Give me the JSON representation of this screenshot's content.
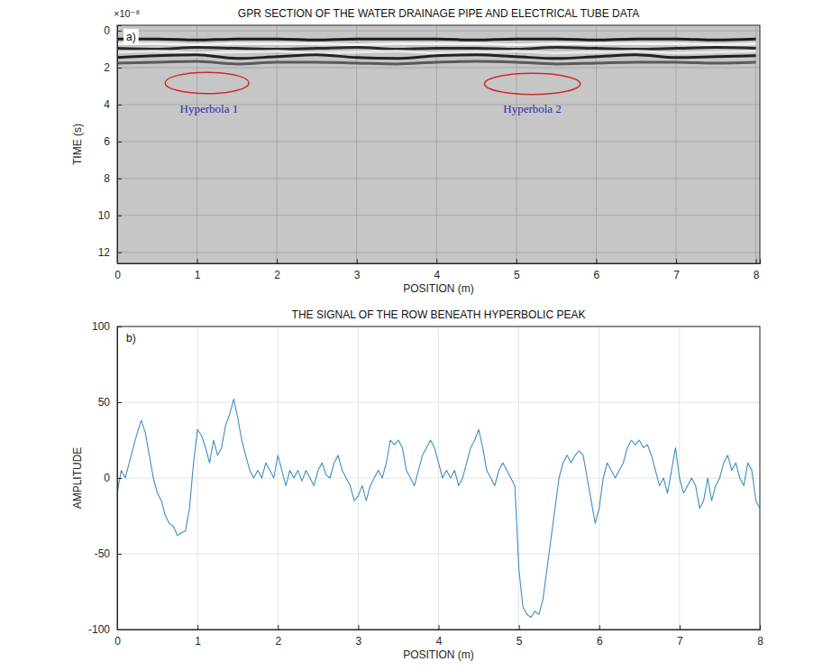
{
  "chart_data": [
    {
      "type": "image",
      "title": "GPR SECTION OF THE WATER DRAINAGE PIPE AND ELECTRICAL TUBE DATA",
      "panel_label": "a)",
      "y_scale_label": "×10⁻⁸",
      "xlabel": "POSITION (m)",
      "ylabel": "TIME (s)",
      "xlim": [
        0,
        8.05
      ],
      "ylim": [
        -0.3,
        12.6
      ],
      "xticks": [
        0,
        1,
        2,
        3,
        4,
        5,
        6,
        7,
        8
      ],
      "yticks": [
        0,
        2,
        4,
        6,
        8,
        10,
        12
      ],
      "grid": true,
      "x": [
        0,
        0.5,
        1,
        1.5,
        2,
        2.5,
        3,
        3.5,
        4,
        4.5,
        5,
        5.5,
        6,
        6.5,
        7,
        7.5,
        8
      ],
      "series": [
        {
          "color": "#1c1c1c",
          "values": [
            0.45,
            0.45,
            0.5,
            0.45,
            0.45,
            0.5,
            0.45,
            0.45,
            0.45,
            0.5,
            0.45,
            0.45,
            0.5,
            0.45,
            0.45,
            0.5,
            0.45
          ]
        },
        {
          "color": "#f2f2f2",
          "values": [
            0.7,
            0.7,
            0.75,
            0.7,
            0.7,
            0.7,
            0.75,
            0.7,
            0.7,
            0.7,
            0.75,
            0.7,
            0.7,
            0.7,
            0.7,
            0.75,
            0.7
          ]
        },
        {
          "color": "#2a2a2a",
          "values": [
            0.95,
            1.0,
            0.9,
            0.95,
            1.0,
            0.95,
            0.9,
            1.0,
            0.95,
            0.95,
            1.0,
            0.9,
            0.95,
            1.0,
            0.95,
            0.9,
            0.95
          ]
        },
        {
          "color": "#e8e8e8",
          "values": [
            1.15,
            1.1,
            1.2,
            1.15,
            1.1,
            1.2,
            1.15,
            1.1,
            1.2,
            1.15,
            1.1,
            1.2,
            1.15,
            1.1,
            1.2,
            1.15,
            1.1
          ]
        },
        {
          "color": "#222222",
          "values": [
            1.45,
            1.35,
            1.3,
            1.5,
            1.4,
            1.3,
            1.45,
            1.5,
            1.35,
            1.3,
            1.4,
            1.5,
            1.4,
            1.3,
            1.45,
            1.4,
            1.35
          ]
        },
        {
          "color": "#5a5a5a",
          "values": [
            1.75,
            1.7,
            1.65,
            1.8,
            1.7,
            1.7,
            1.75,
            1.8,
            1.7,
            1.65,
            1.7,
            1.8,
            1.75,
            1.7,
            1.7,
            1.75,
            1.7
          ]
        }
      ],
      "regions": [
        {
          "x": [
            0.6,
            1.65
          ],
          "y": [
            2.25,
            3.4
          ],
          "color": "#cc2b2b"
        },
        {
          "x": [
            4.6,
            5.8
          ],
          "y": [
            2.3,
            3.45
          ],
          "color": "#cc2b2b"
        }
      ],
      "annotations": [
        {
          "text": "Hyperbola 1",
          "x": 1.15,
          "y": 4.45,
          "color": "#2b2bb0"
        },
        {
          "text": "Hyperbola 2",
          "x": 5.2,
          "y": 4.45,
          "color": "#2b2bb0"
        }
      ]
    },
    {
      "type": "line",
      "title": "THE SIGNAL OF THE ROW BENEATH HYPERBOLIC PEAK",
      "panel_label": "b)",
      "xlabel": "POSITION (m)",
      "ylabel": "AMPLITUDE",
      "xlim": [
        0,
        8
      ],
      "ylim": [
        -100,
        100
      ],
      "xticks": [
        0,
        1,
        2,
        3,
        4,
        5,
        6,
        7,
        8
      ],
      "yticks": [
        -100,
        -50,
        0,
        50,
        100
      ],
      "grid": true,
      "x": [
        0,
        0.05,
        0.1,
        0.15,
        0.2,
        0.25,
        0.3,
        0.35,
        0.4,
        0.45,
        0.5,
        0.55,
        0.6,
        0.65,
        0.7,
        0.75,
        0.8,
        0.85,
        0.9,
        0.95,
        1,
        1.05,
        1.1,
        1.15,
        1.2,
        1.25,
        1.3,
        1.35,
        1.4,
        1.45,
        1.5,
        1.55,
        1.6,
        1.65,
        1.7,
        1.75,
        1.8,
        1.85,
        1.9,
        1.95,
        2,
        2.05,
        2.1,
        2.15,
        2.2,
        2.25,
        2.3,
        2.35,
        2.4,
        2.45,
        2.5,
        2.55,
        2.6,
        2.65,
        2.7,
        2.75,
        2.8,
        2.85,
        2.9,
        2.95,
        3,
        3.05,
        3.1,
        3.15,
        3.2,
        3.25,
        3.3,
        3.35,
        3.4,
        3.45,
        3.5,
        3.55,
        3.6,
        3.65,
        3.7,
        3.75,
        3.8,
        3.85,
        3.9,
        3.95,
        4,
        4.05,
        4.1,
        4.15,
        4.2,
        4.25,
        4.3,
        4.35,
        4.4,
        4.45,
        4.5,
        4.55,
        4.6,
        4.65,
        4.7,
        4.75,
        4.8,
        4.85,
        4.9,
        4.95,
        5,
        5.05,
        5.1,
        5.15,
        5.2,
        5.25,
        5.3,
        5.35,
        5.4,
        5.45,
        5.5,
        5.55,
        5.6,
        5.65,
        5.7,
        5.75,
        5.8,
        5.85,
        5.9,
        5.95,
        6,
        6.05,
        6.1,
        6.15,
        6.2,
        6.25,
        6.3,
        6.35,
        6.4,
        6.45,
        6.5,
        6.55,
        6.6,
        6.65,
        6.7,
        6.75,
        6.8,
        6.85,
        6.9,
        6.95,
        7,
        7.05,
        7.1,
        7.15,
        7.2,
        7.25,
        7.3,
        7.35,
        7.4,
        7.45,
        7.5,
        7.55,
        7.6,
        7.65,
        7.7,
        7.75,
        7.8,
        7.85,
        7.9,
        7.95,
        8
      ],
      "series": [
        {
          "color": "#3b8fc0",
          "values": [
            -10,
            5,
            0,
            10,
            20,
            30,
            38,
            30,
            15,
            0,
            -10,
            -15,
            -25,
            -30,
            -32,
            -38,
            -36,
            -35,
            -20,
            10,
            32,
            28,
            20,
            10,
            25,
            15,
            20,
            35,
            42,
            52,
            40,
            25,
            15,
            5,
            0,
            5,
            0,
            10,
            5,
            0,
            15,
            5,
            -5,
            5,
            0,
            5,
            -2,
            5,
            0,
            -5,
            5,
            10,
            2,
            0,
            10,
            15,
            5,
            0,
            -5,
            -15,
            -12,
            -5,
            -15,
            -5,
            0,
            5,
            0,
            10,
            25,
            22,
            25,
            20,
            5,
            0,
            -5,
            5,
            15,
            20,
            25,
            20,
            10,
            0,
            5,
            0,
            5,
            -5,
            0,
            10,
            20,
            25,
            32,
            20,
            5,
            0,
            -5,
            5,
            10,
            5,
            0,
            -5,
            -60,
            -85,
            -90,
            -92,
            -88,
            -90,
            -80,
            -60,
            -40,
            -20,
            0,
            10,
            15,
            10,
            15,
            18,
            15,
            0,
            -15,
            -30,
            -20,
            0,
            10,
            5,
            0,
            5,
            10,
            20,
            25,
            22,
            25,
            20,
            22,
            15,
            5,
            -5,
            0,
            -10,
            5,
            20,
            0,
            -10,
            -5,
            0,
            -5,
            -20,
            -15,
            0,
            -15,
            -5,
            0,
            10,
            15,
            5,
            10,
            0,
            -5,
            10,
            5,
            -15,
            -20
          ]
        }
      ]
    }
  ]
}
